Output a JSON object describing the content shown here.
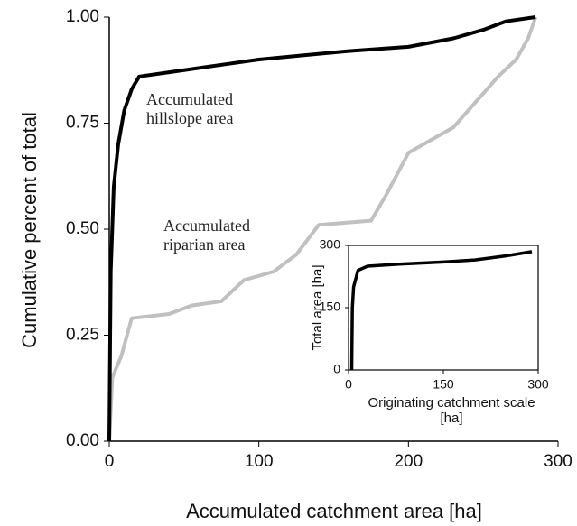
{
  "chart_data": [
    {
      "type": "line",
      "xlabel": "Accumulated catchment area [ha]",
      "ylabel": "Cumulative percent of total",
      "xlim": [
        0,
        300
      ],
      "xticks": [
        0,
        100,
        200,
        300
      ],
      "ylim": [
        0,
        1
      ],
      "yticks": [
        {
          "value": 0,
          "label": "0.00"
        },
        {
          "value": 0.25,
          "label": "0.25"
        },
        {
          "value": 0.5,
          "label": "0.50"
        },
        {
          "value": 0.75,
          "label": "0.75"
        },
        {
          "value": 1,
          "label": "1.00"
        }
      ],
      "series": [
        {
          "name": "Accumulated riparian area",
          "color": "#c0c0c0",
          "x": [
            0,
            2,
            8,
            15,
            40,
            55,
            75,
            90,
            110,
            125,
            140,
            175,
            185,
            200,
            215,
            230,
            245,
            260,
            272,
            280,
            285
          ],
          "values": [
            0,
            0.15,
            0.2,
            0.29,
            0.3,
            0.32,
            0.33,
            0.38,
            0.4,
            0.44,
            0.51,
            0.52,
            0.58,
            0.68,
            0.71,
            0.74,
            0.8,
            0.86,
            0.9,
            0.95,
            1.0
          ]
        },
        {
          "name": "Accumulated hillslope area",
          "color": "#000000",
          "x": [
            0,
            1,
            3,
            6,
            10,
            15,
            20,
            40,
            60,
            80,
            100,
            130,
            160,
            200,
            230,
            250,
            265,
            285
          ],
          "values": [
            0,
            0.4,
            0.6,
            0.7,
            0.78,
            0.83,
            0.86,
            0.87,
            0.88,
            0.89,
            0.9,
            0.91,
            0.92,
            0.93,
            0.95,
            0.97,
            0.99,
            1.0
          ]
        }
      ]
    },
    {
      "type": "line",
      "xlabel": "Originating catchment scale [ha]",
      "ylabel": "Total area [ha]",
      "xlim": [
        0,
        300
      ],
      "xticks": [
        0,
        150,
        300
      ],
      "ylim": [
        0,
        300
      ],
      "yticks": [
        0,
        150,
        300
      ],
      "series": [
        {
          "color": "#000000",
          "x": [
            5,
            6,
            8,
            15,
            30,
            80,
            150,
            200,
            250,
            290
          ],
          "values": [
            0,
            150,
            200,
            240,
            250,
            255,
            260,
            265,
            275,
            285
          ]
        }
      ]
    }
  ]
}
